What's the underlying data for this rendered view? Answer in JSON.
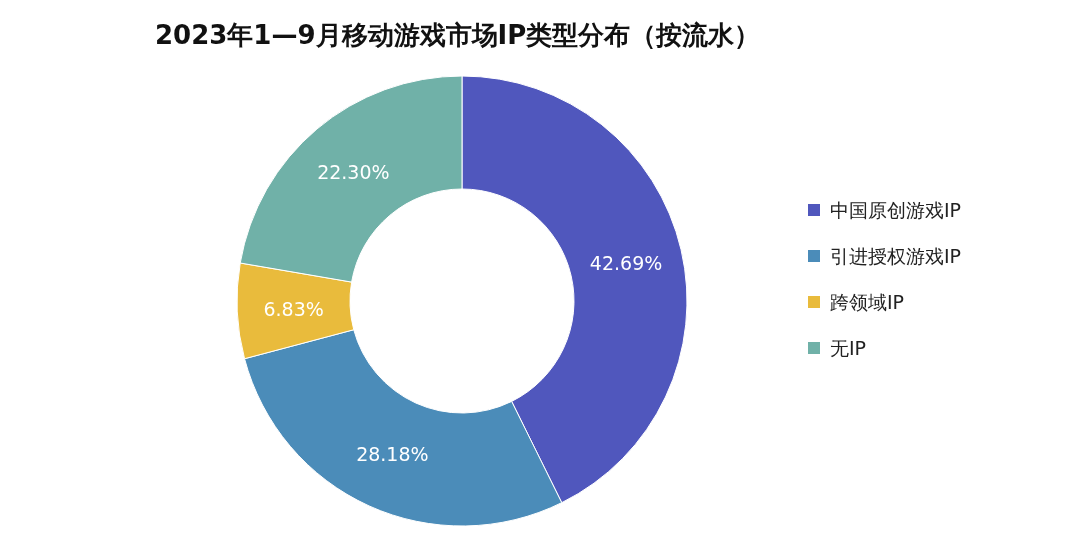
{
  "chart_data": {
    "type": "donut",
    "title": "2023年1—9月移动游戏市场IP类型分布（按流水）",
    "categories": [
      "中国原创游戏IP",
      "引进授权游戏IP",
      "跨领域IP",
      "无IP"
    ],
    "values": [
      42.69,
      28.18,
      6.83,
      22.3
    ],
    "colors": [
      "#5057bd",
      "#4b8cb9",
      "#e9bb3c",
      "#70b1a8"
    ],
    "value_labels": [
      "42.69%",
      "28.18%",
      "6.83%",
      "22.30%"
    ],
    "legend": "right"
  }
}
